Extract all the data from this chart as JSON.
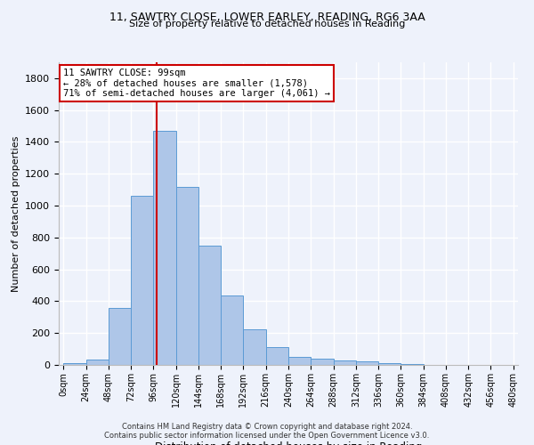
{
  "title_line1": "11, SAWTRY CLOSE, LOWER EARLEY, READING, RG6 3AA",
  "title_line2": "Size of property relative to detached houses in Reading",
  "xlabel": "Distribution of detached houses by size in Reading",
  "ylabel": "Number of detached properties",
  "footnote1": "Contains HM Land Registry data © Crown copyright and database right 2024.",
  "footnote2": "Contains public sector information licensed under the Open Government Licence v3.0.",
  "bar_edges": [
    0,
    24,
    48,
    72,
    96,
    120,
    144,
    168,
    192,
    216,
    240,
    264,
    288,
    312,
    336,
    360,
    384,
    408,
    432,
    456,
    480
  ],
  "bar_heights": [
    10,
    35,
    355,
    1060,
    1470,
    1115,
    750,
    435,
    225,
    110,
    50,
    40,
    30,
    20,
    10,
    5,
    0,
    0,
    0,
    0
  ],
  "bar_color": "#aec6e8",
  "bar_edge_color": "#5b9bd5",
  "property_size": 99,
  "vline_color": "#cc0000",
  "annotation_text": "11 SAWTRY CLOSE: 99sqm\n← 28% of detached houses are smaller (1,578)\n71% of semi-detached houses are larger (4,061) →",
  "annotation_box_color": "#cc0000",
  "ylim": [
    0,
    1900
  ],
  "yticks": [
    0,
    200,
    400,
    600,
    800,
    1000,
    1200,
    1400,
    1600,
    1800
  ],
  "background_color": "#eef2fb",
  "grid_color": "#ffffff",
  "title_fontsize1": 9,
  "title_fontsize2": 8,
  "ylabel_fontsize": 8,
  "xlabel_fontsize": 8.5,
  "tick_label_size": 7,
  "footnote_fontsize": 6,
  "annotation_fontsize": 7.5
}
